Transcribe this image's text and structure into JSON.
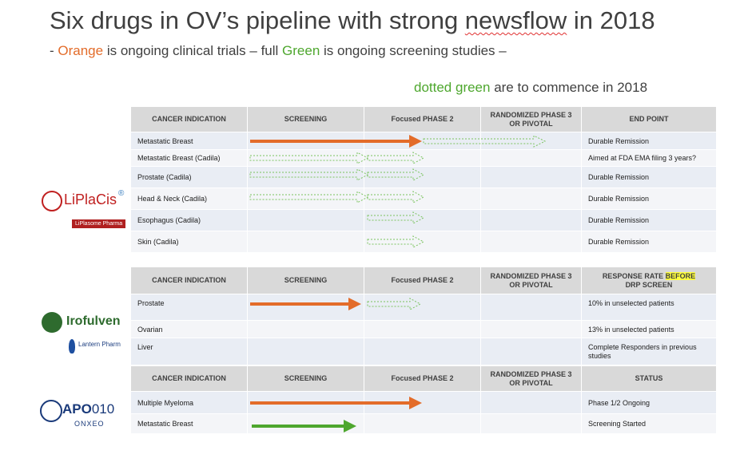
{
  "title": {
    "before": "Six drugs in OV’s pipeline with strong ",
    "squiggle": "newsflow",
    "after": " in 2018"
  },
  "subtitle1": {
    "dash": "- ",
    "orange": "Orange",
    "mid": " is ongoing clinical trials – full ",
    "green": "Green",
    "end": " is ongoing screening studies –"
  },
  "subtitle2": {
    "green": "dotted green",
    "end": " are to commence in 2018"
  },
  "colors": {
    "orange": "#e36c2a",
    "green": "#4ea72e",
    "header_bg": "#d9d9d9",
    "row_odd": "#e9edf4"
  },
  "table1": {
    "headers": [
      "CANCER INDICATION",
      "SCREENING",
      "Focused PHASE 2",
      "RANDOMIZED PHASE 3 OR PIVOTAL",
      "END POINT"
    ],
    "rows": [
      {
        "indication": "Metastatic Breast",
        "endpoint": "Durable Remission"
      },
      {
        "indication": "Metastatic Breast (Cadila)",
        "endpoint": "Aimed at FDA EMA filing 3 years?"
      },
      {
        "indication": "Prostate (Cadila)",
        "endpoint": "Durable Remission"
      },
      {
        "indication": "Head & Neck (Cadila)",
        "endpoint": "Durable Remission"
      },
      {
        "indication": "Esophagus (Cadila)",
        "endpoint": "Durable Remission"
      },
      {
        "indication": "Skin (Cadila)",
        "endpoint": "Durable Remission"
      }
    ]
  },
  "table2": {
    "headers": [
      "CANCER INDICATION",
      "SCREENING",
      "Focused PHASE 2",
      "RANDOMIZED PHASE 3 OR PIVOTAL"
    ],
    "header_last_a": "RESPONSE RATE ",
    "header_last_hl": "BEFORE",
    "header_last_b": "DRP SCREEN",
    "rows": [
      {
        "indication": "Prostate",
        "endpoint": "10% in unselected patients"
      },
      {
        "indication": "Ovarian",
        "endpoint": "13% in unselected patients"
      },
      {
        "indication": "Liver",
        "endpoint": "Complete Responders in previous studies"
      }
    ]
  },
  "table3": {
    "headers": [
      "CANCER INDICATION",
      "SCREENING",
      "Focused PHASE 2",
      "RANDOMIZED PHASE 3 OR PIVOTAL",
      "STATUS"
    ],
    "rows": [
      {
        "indication": "Multiple Myeloma",
        "endpoint": "Phase 1/2  Ongoing"
      },
      {
        "indication": "Metastatic Breast",
        "endpoint": "Screening Started"
      }
    ]
  },
  "logos": {
    "liplacis": "LiPlaCis",
    "liplacis_reg": "®",
    "liplasome": "LiPlasome Pharma",
    "irofulven": "Irofulven",
    "lantern": "Lantern Pharm",
    "apo_a": "APO",
    "apo_b": "010",
    "onxeo": "ONXEO"
  }
}
